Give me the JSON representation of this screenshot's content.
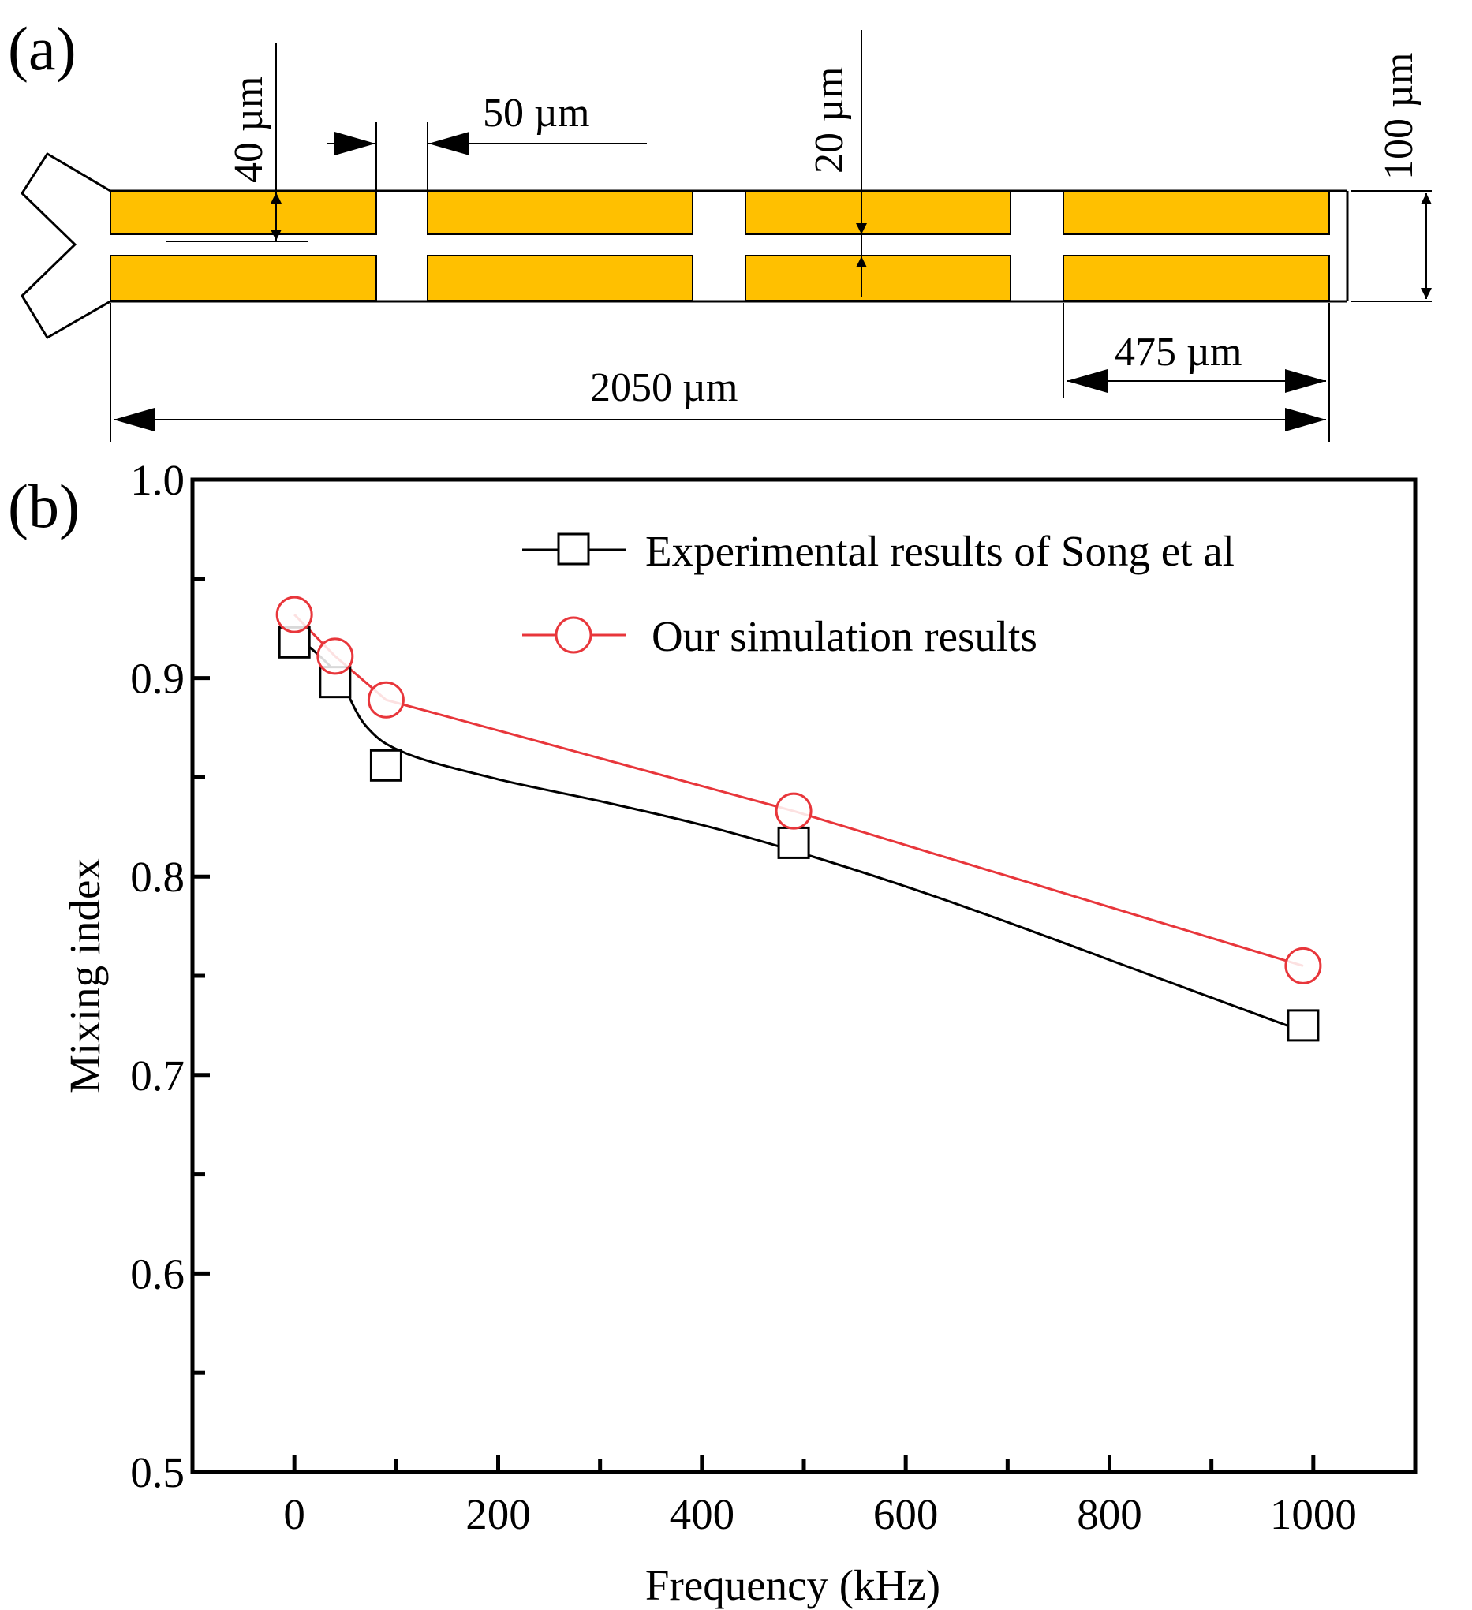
{
  "panel_a": {
    "label": "(a)",
    "dims": {
      "electrode_width": "40 µm",
      "electrode_gap": "50 µm",
      "electrode_spacing": "20 µm",
      "channel_width": "100 µm",
      "segment_length": "475 µm",
      "total_length": "2050 µm"
    },
    "colors": {
      "electrode": "#FFC000"
    }
  },
  "panel_b": {
    "label": "(b)",
    "legend": {
      "experimental": "Experimental results of Song et al",
      "simulation": "Our simulation results"
    }
  },
  "chart_data": {
    "type": "line",
    "title": "",
    "xlabel": "Frequency (kHz)",
    "ylabel": "Mixing index",
    "xlim": [
      -100,
      1100
    ],
    "ylim": [
      0.5,
      1.0
    ],
    "x_ticks": [
      0,
      200,
      400,
      600,
      800,
      1000
    ],
    "x_tick_labels": [
      "0",
      "200",
      "400",
      "600",
      "800",
      "1000"
    ],
    "y_ticks": [
      0.5,
      0.6,
      0.7,
      0.8,
      0.9,
      1.0
    ],
    "y_tick_labels": [
      "0.5",
      "0.6",
      "0.7",
      "0.8",
      "0.9",
      "1.0"
    ],
    "legend_position": "top-right",
    "series": [
      {
        "name": "Experimental results of Song et al",
        "marker": "square",
        "color": "#000000",
        "x": [
          0,
          40,
          90,
          490,
          990
        ],
        "y": [
          0.918,
          0.898,
          0.856,
          0.817,
          0.725
        ],
        "fit_curve": {
          "x": [
            0,
            40,
            70,
            110,
            200,
            300,
            400,
            490,
            600,
            700,
            800,
            900,
            990
          ],
          "y": [
            0.922,
            0.903,
            0.876,
            0.862,
            0.849,
            0.838,
            0.826,
            0.813,
            0.795,
            0.777,
            0.758,
            0.739,
            0.722
          ]
        }
      },
      {
        "name": "Our simulation results",
        "marker": "circle",
        "color": "#E8363B",
        "x": [
          0,
          40,
          90,
          490,
          990
        ],
        "y": [
          0.932,
          0.911,
          0.889,
          0.833,
          0.755
        ]
      }
    ]
  }
}
